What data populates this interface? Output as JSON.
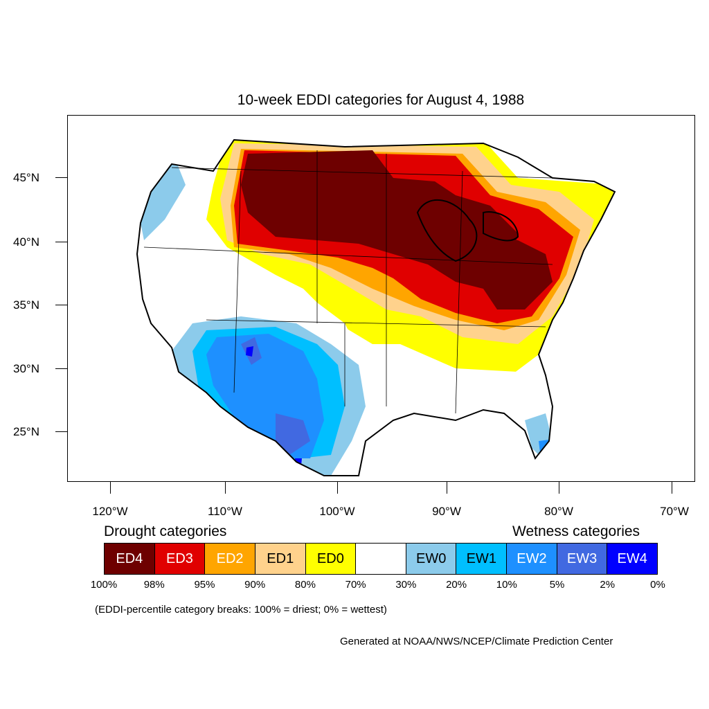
{
  "title": "10-week EDDI categories for August 4, 1988",
  "lat_labels": [
    "45°N",
    "40°N",
    "35°N",
    "30°N",
    "25°N"
  ],
  "lon_labels": [
    "120°W",
    "110°W",
    "100°W",
    "90°W",
    "80°W",
    "70°W"
  ],
  "legend": {
    "drought_heading": "Drought categories",
    "wetness_heading": "Wetness categories",
    "categories": [
      {
        "label": "ED4",
        "color": "#6e0000",
        "text_color": "#ffffff"
      },
      {
        "label": "ED3",
        "color": "#e00000",
        "text_color": "#ffffff"
      },
      {
        "label": "ED2",
        "color": "#ffa500",
        "text_color": "#ffffff"
      },
      {
        "label": "ED1",
        "color": "#ffd28c",
        "text_color": "#000000"
      },
      {
        "label": "ED0",
        "color": "#ffff00",
        "text_color": "#000000"
      },
      {
        "label": "",
        "color": "#ffffff",
        "text_color": "#000000"
      },
      {
        "label": "EW0",
        "color": "#8ccbeb",
        "text_color": "#000000"
      },
      {
        "label": "EW1",
        "color": "#00bfff",
        "text_color": "#000000"
      },
      {
        "label": "EW2",
        "color": "#1e90ff",
        "text_color": "#ffffff"
      },
      {
        "label": "EW3",
        "color": "#4169e1",
        "text_color": "#ffffff"
      },
      {
        "label": "EW4",
        "color": "#0000ff",
        "text_color": "#ffffff"
      }
    ],
    "breaks": [
      "100%",
      "98%",
      "95%",
      "90%",
      "80%",
      "70%",
      "30%",
      "20%",
      "10%",
      "5%",
      "2%",
      "0%"
    ]
  },
  "note": "(EDDI-percentile category breaks: 100% = driest; 0% = wettest)",
  "credit": "Generated at NOAA/NWS/NCEP/Climate Prediction Center"
}
